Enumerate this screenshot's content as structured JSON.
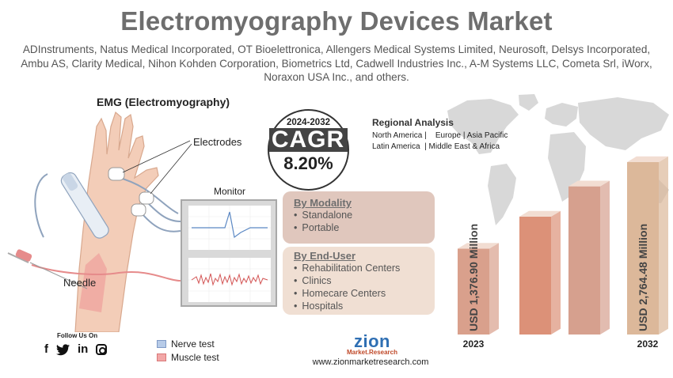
{
  "title": "Electromyography Devices Market",
  "companies": "ADInstruments, Natus Medical Incorporated, OT Bioelettronica, Allengers Medical Systems Limited, Neurosoft, Delsys Incorporated, Ambu AS, Clarity Medical, Nihon Kohden Corporation, Biometrics Ltd, Cadwell Industries Inc., A-M Systems LLC, Cometa Srl, iWorx, Noraxon USA Inc., and others.",
  "illustration": {
    "title": "EMG (Electromyography)",
    "electrodes_label": "Electrodes",
    "monitor_label": "Monitor",
    "needle_label": "Needle"
  },
  "cagr": {
    "period": "2024-2032",
    "label": "CAGR",
    "value": "8.20%"
  },
  "regional": {
    "title": "Regional Analysis",
    "line1": "North America |    Europe | Asia Pacific",
    "line2": "Latin America  | Middle East & Africa"
  },
  "segments": {
    "modality": {
      "heading": "By Modality",
      "items": [
        "Standalone",
        "Portable"
      ]
    },
    "end_user": {
      "heading": "By End-User",
      "items": [
        "Rehabilitation Centers",
        "Clinics",
        "Homecare Centers",
        "Hospitals"
      ]
    }
  },
  "legend": {
    "nerve": "Nerve test",
    "muscle": "Muscle test"
  },
  "follow": {
    "label": "Follow Us On",
    "icons": [
      "facebook-icon",
      "twitter-icon",
      "linkedin-icon",
      "instagram-icon"
    ]
  },
  "brand": {
    "logo_word": "zion",
    "logo_sub": "Market.Research",
    "website": "www.zionmarketresearch.com"
  },
  "colors": {
    "bar_2023": "#d9a08c",
    "bar_mid1": "#dc9178",
    "bar_mid2": "#d6a08e",
    "bar_2032": "#dcb89a",
    "nerve": "#b7cbe8",
    "muscle": "#f2a7a7",
    "title": "#6e6e6e"
  },
  "chart_data": {
    "type": "bar",
    "categories": [
      "2023",
      "",
      "",
      "2032"
    ],
    "values": [
      1376.9,
      null,
      null,
      2764.48
    ],
    "value_labels": [
      "USD 1,376.90 Million",
      "",
      "",
      "USD 2,764.48 Million"
    ],
    "unit": "USD Million"
  }
}
